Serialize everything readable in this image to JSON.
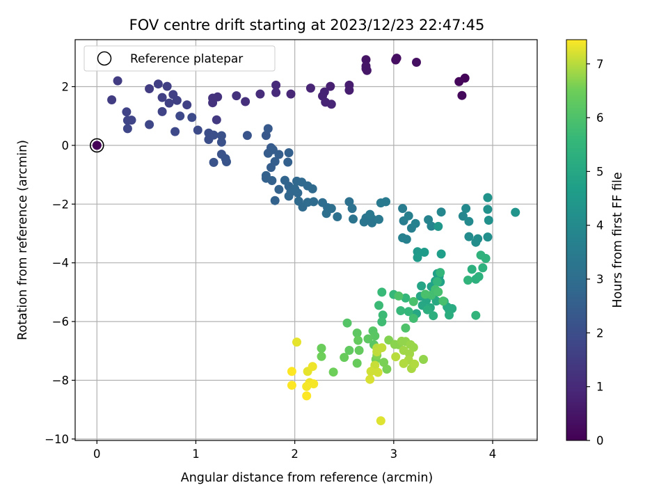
{
  "chart_data": {
    "type": "scatter",
    "title": "FOV centre drift starting at 2023/12/23 22:47:45",
    "xlabel": "Angular distance from reference (arcmin)",
    "ylabel": "Rotation from reference (arcmin)",
    "xlim": [
      -0.22,
      4.45
    ],
    "ylim": [
      -10.05,
      3.6
    ],
    "xticks": [
      0,
      1,
      2,
      3,
      4
    ],
    "xtick_labels": [
      "0",
      "1",
      "2",
      "3",
      "4"
    ],
    "yticks": [
      -10,
      -8,
      -6,
      -4,
      -2,
      0,
      2
    ],
    "ytick_labels": [
      "−10",
      "−8",
      "−6",
      "−4",
      "−2",
      "0",
      "2"
    ],
    "grid": true,
    "legend": {
      "placement": "top-left",
      "entries": [
        {
          "label": "Reference platepar",
          "marker": "open-circle"
        }
      ]
    },
    "reference_point": {
      "x": 0,
      "y": 0,
      "label": "Reference platepar"
    },
    "colorbar": {
      "label": "Hours from first FF file",
      "colormap": "viridis",
      "range": [
        0,
        7.45
      ],
      "ticks": [
        0,
        1,
        2,
        3,
        4,
        5,
        6,
        7
      ],
      "tick_labels": [
        "0",
        "1",
        "2",
        "3",
        "4",
        "5",
        "6",
        "7"
      ]
    },
    "points": [
      [
        0.0,
        0.0,
        0.05
      ],
      [
        3.72,
        2.29,
        0.1
      ],
      [
        3.66,
        2.17,
        0.15
      ],
      [
        3.69,
        1.7,
        0.2
      ],
      [
        3.03,
        2.97,
        0.3
      ],
      [
        3.02,
        2.91,
        0.3
      ],
      [
        3.23,
        2.83,
        0.35
      ],
      [
        2.72,
        2.92,
        0.45
      ],
      [
        2.72,
        2.7,
        0.5
      ],
      [
        2.73,
        2.55,
        0.55
      ],
      [
        2.72,
        2.61,
        0.5
      ],
      [
        2.55,
        2.05,
        0.7
      ],
      [
        2.55,
        1.88,
        0.7
      ],
      [
        2.36,
        2.01,
        0.75
      ],
      [
        2.3,
        1.82,
        0.8
      ],
      [
        2.28,
        1.68,
        0.8
      ],
      [
        2.31,
        1.47,
        0.85
      ],
      [
        2.37,
        1.4,
        0.85
      ],
      [
        2.16,
        1.95,
        0.85
      ],
      [
        1.96,
        1.75,
        0.9
      ],
      [
        1.81,
        2.05,
        1.0
      ],
      [
        1.81,
        1.8,
        1.0
      ],
      [
        1.65,
        1.75,
        1.05
      ],
      [
        1.5,
        1.49,
        1.15
      ],
      [
        1.41,
        1.69,
        1.2
      ],
      [
        1.22,
        1.65,
        1.2
      ],
      [
        1.17,
        1.61,
        1.25
      ],
      [
        1.17,
        1.45,
        1.25
      ],
      [
        1.21,
        0.87,
        1.4
      ],
      [
        0.21,
        2.2,
        1.5
      ],
      [
        0.15,
        1.55,
        1.5
      ],
      [
        0.53,
        1.93,
        1.5
      ],
      [
        0.62,
        2.09,
        1.55
      ],
      [
        0.71,
        2.01,
        1.6
      ],
      [
        0.66,
        1.63,
        1.6
      ],
      [
        0.77,
        1.73,
        1.6
      ],
      [
        0.81,
        1.53,
        1.65
      ],
      [
        0.91,
        1.38,
        1.65
      ],
      [
        0.73,
        1.44,
        1.65
      ],
      [
        0.66,
        1.15,
        1.7
      ],
      [
        0.3,
        1.14,
        1.7
      ],
      [
        0.35,
        0.86,
        1.75
      ],
      [
        0.31,
        0.85,
        1.75
      ],
      [
        0.31,
        0.57,
        1.8
      ],
      [
        0.53,
        0.71,
        1.8
      ],
      [
        0.79,
        0.47,
        1.85
      ],
      [
        0.84,
        1.0,
        1.85
      ],
      [
        0.96,
        0.95,
        1.9
      ],
      [
        1.02,
        0.52,
        1.95
      ],
      [
        1.13,
        0.42,
        2.0
      ],
      [
        1.13,
        0.2,
        2.0
      ],
      [
        1.18,
        0.35,
        2.05
      ],
      [
        1.26,
        0.33,
        2.1
      ],
      [
        1.26,
        0.11,
        2.1
      ],
      [
        1.26,
        -0.3,
        2.15
      ],
      [
        1.3,
        -0.45,
        2.2
      ],
      [
        1.31,
        -0.56,
        2.2
      ],
      [
        1.18,
        -0.58,
        2.15
      ],
      [
        1.52,
        0.34,
        2.2
      ],
      [
        1.71,
        0.34,
        2.3
      ],
      [
        1.73,
        0.57,
        2.35
      ],
      [
        1.76,
        -0.08,
        2.4
      ],
      [
        1.73,
        -0.27,
        2.45
      ],
      [
        1.78,
        -0.15,
        2.45
      ],
      [
        1.76,
        -0.75,
        2.5
      ],
      [
        1.8,
        -0.55,
        2.5
      ],
      [
        1.84,
        -0.31,
        2.5
      ],
      [
        1.94,
        -0.25,
        2.55
      ],
      [
        1.93,
        -0.57,
        2.55
      ],
      [
        1.71,
        -1.03,
        2.6
      ],
      [
        1.71,
        -1.12,
        2.6
      ],
      [
        1.77,
        -1.2,
        2.6
      ],
      [
        1.84,
        -1.5,
        2.65
      ],
      [
        1.8,
        -1.88,
        2.65
      ],
      [
        1.9,
        -1.19,
        2.7
      ],
      [
        1.94,
        -1.39,
        2.7
      ],
      [
        1.94,
        -1.73,
        2.75
      ],
      [
        1.96,
        -1.58,
        2.75
      ],
      [
        2.02,
        -1.22,
        2.8
      ],
      [
        2.0,
        -1.48,
        2.8
      ],
      [
        2.03,
        -1.62,
        2.8
      ],
      [
        2.07,
        -1.25,
        2.85
      ],
      [
        2.13,
        -1.38,
        2.85
      ],
      [
        2.18,
        -1.48,
        2.9
      ],
      [
        2.04,
        -1.9,
        2.9
      ],
      [
        2.08,
        -2.1,
        2.9
      ],
      [
        2.13,
        -1.94,
        2.95
      ],
      [
        2.19,
        -1.92,
        2.95
      ],
      [
        2.28,
        -1.95,
        3.0
      ],
      [
        2.33,
        -2.12,
        3.0
      ],
      [
        2.32,
        -2.32,
        3.05
      ],
      [
        2.37,
        -2.15,
        3.05
      ],
      [
        2.43,
        -2.43,
        3.1
      ],
      [
        2.55,
        -1.92,
        3.1
      ],
      [
        2.58,
        -2.15,
        3.15
      ],
      [
        2.59,
        -2.51,
        3.2
      ],
      [
        2.7,
        -2.61,
        3.25
      ],
      [
        2.72,
        -2.47,
        3.25
      ],
      [
        2.78,
        -2.5,
        3.3
      ],
      [
        2.78,
        -2.64,
        3.3
      ],
      [
        2.76,
        -2.35,
        3.35
      ],
      [
        2.85,
        -2.52,
        3.4
      ],
      [
        2.87,
        -1.96,
        3.45
      ],
      [
        2.92,
        -1.92,
        3.45
      ],
      [
        3.09,
        -2.15,
        3.5
      ],
      [
        3.1,
        -2.57,
        3.55
      ],
      [
        3.15,
        -2.4,
        3.6
      ],
      [
        3.18,
        -2.82,
        3.6
      ],
      [
        3.09,
        -3.15,
        3.65
      ],
      [
        3.13,
        -3.2,
        3.65
      ],
      [
        3.22,
        -2.66,
        3.7
      ],
      [
        3.35,
        -2.53,
        3.75
      ],
      [
        3.38,
        -2.75,
        3.8
      ],
      [
        3.48,
        -2.27,
        3.85
      ],
      [
        3.7,
        -2.41,
        3.9
      ],
      [
        3.73,
        -2.15,
        3.95
      ],
      [
        3.76,
        -2.59,
        4.0
      ],
      [
        3.76,
        -3.11,
        4.05
      ],
      [
        3.83,
        -3.3,
        4.1
      ],
      [
        3.85,
        -3.18,
        4.1
      ],
      [
        3.95,
        -3.12,
        4.15
      ],
      [
        3.95,
        -2.18,
        4.2
      ],
      [
        3.96,
        -2.55,
        4.2
      ],
      [
        3.95,
        -1.78,
        4.3
      ],
      [
        4.23,
        -2.28,
        4.35
      ],
      [
        3.45,
        -2.76,
        4.4
      ],
      [
        3.24,
        -3.62,
        4.5
      ],
      [
        3.24,
        -3.82,
        4.55
      ],
      [
        3.31,
        -3.64,
        4.6
      ],
      [
        3.48,
        -3.7,
        4.65
      ],
      [
        3.44,
        -4.37,
        4.7
      ],
      [
        3.46,
        -4.45,
        4.75
      ],
      [
        3.38,
        -4.81,
        4.75
      ],
      [
        3.42,
        -4.62,
        4.8
      ],
      [
        3.47,
        -4.65,
        4.8
      ],
      [
        3.4,
        -5.12,
        4.85
      ],
      [
        3.28,
        -4.79,
        4.9
      ],
      [
        3.27,
        -5.14,
        4.95
      ],
      [
        3.33,
        -5.27,
        4.95
      ],
      [
        3.29,
        -5.45,
        5.0
      ],
      [
        3.23,
        -5.73,
        5.0
      ],
      [
        3.37,
        -5.53,
        5.05
      ],
      [
        3.43,
        -5.3,
        5.05
      ],
      [
        3.51,
        -5.32,
        5.1
      ],
      [
        3.54,
        -5.5,
        5.1
      ],
      [
        3.56,
        -5.61,
        5.15
      ],
      [
        3.59,
        -5.56,
        5.15
      ],
      [
        3.56,
        -5.78,
        5.2
      ],
      [
        3.4,
        -5.8,
        5.25
      ],
      [
        3.34,
        -5.6,
        5.25
      ],
      [
        3.83,
        -4.56,
        5.3
      ],
      [
        3.79,
        -4.22,
        5.3
      ],
      [
        3.9,
        -4.17,
        5.35
      ],
      [
        3.86,
        -4.47,
        5.35
      ],
      [
        3.88,
        -3.74,
        5.4
      ],
      [
        3.93,
        -3.85,
        5.4
      ],
      [
        3.83,
        -5.79,
        5.45
      ],
      [
        3.75,
        -4.59,
        5.45
      ],
      [
        3.47,
        -4.33,
        5.5
      ],
      [
        3.44,
        -4.64,
        5.5
      ],
      [
        3.12,
        -5.2,
        5.55
      ],
      [
        3.15,
        -5.66,
        5.55
      ],
      [
        3.07,
        -5.63,
        5.6
      ],
      [
        3.0,
        -5.08,
        5.6
      ],
      [
        2.88,
        -5.0,
        5.65
      ],
      [
        2.89,
        -5.78,
        5.7
      ],
      [
        2.85,
        -5.45,
        5.7
      ],
      [
        2.88,
        -6.01,
        5.75
      ],
      [
        3.2,
        -5.89,
        5.8
      ],
      [
        3.38,
        -5.1,
        5.85
      ],
      [
        3.42,
        -4.91,
        5.85
      ],
      [
        3.45,
        -4.99,
        5.9
      ],
      [
        3.5,
        -5.3,
        5.9
      ],
      [
        3.32,
        -5.07,
        5.95
      ],
      [
        3.2,
        -5.32,
        5.95
      ],
      [
        3.05,
        -5.13,
        6.0
      ],
      [
        3.12,
        -6.22,
        6.0
      ],
      [
        2.53,
        -6.05,
        6.1
      ],
      [
        2.79,
        -6.32,
        6.15
      ],
      [
        2.81,
        -6.49,
        6.2
      ],
      [
        2.8,
        -6.79,
        6.2
      ],
      [
        2.74,
        -6.59,
        6.25
      ],
      [
        2.63,
        -6.39,
        6.25
      ],
      [
        2.55,
        -6.98,
        6.3
      ],
      [
        2.64,
        -6.64,
        6.35
      ],
      [
        2.65,
        -6.98,
        6.35
      ],
      [
        2.5,
        -7.22,
        6.4
      ],
      [
        2.63,
        -7.42,
        6.4
      ],
      [
        2.27,
        -6.91,
        6.45
      ],
      [
        2.27,
        -7.19,
        6.5
      ],
      [
        2.39,
        -7.72,
        6.5
      ],
      [
        2.82,
        -7.29,
        6.55
      ],
      [
        2.93,
        -7.62,
        6.6
      ],
      [
        2.9,
        -7.39,
        6.6
      ],
      [
        2.83,
        -7.15,
        6.65
      ],
      [
        2.95,
        -6.63,
        6.65
      ],
      [
        3.01,
        -6.78,
        6.7
      ],
      [
        3.05,
        -6.79,
        6.7
      ],
      [
        3.08,
        -6.67,
        6.75
      ],
      [
        3.12,
        -6.68,
        6.75
      ],
      [
        3.17,
        -6.79,
        6.8
      ],
      [
        3.2,
        -6.88,
        6.8
      ],
      [
        3.1,
        -6.98,
        6.85
      ],
      [
        3.16,
        -7.1,
        6.85
      ],
      [
        3.15,
        -7.31,
        6.9
      ],
      [
        3.18,
        -7.6,
        6.9
      ],
      [
        3.21,
        -7.45,
        6.95
      ],
      [
        3.1,
        -7.43,
        6.95
      ],
      [
        3.02,
        -7.2,
        7.0
      ],
      [
        3.3,
        -7.29,
        6.75
      ],
      [
        2.83,
        -6.9,
        7.0
      ],
      [
        2.88,
        -6.89,
        7.05
      ],
      [
        2.83,
        -7.03,
        7.05
      ],
      [
        2.8,
        -7.64,
        7.1
      ],
      [
        2.81,
        -7.49,
        7.1
      ],
      [
        2.84,
        -7.73,
        7.15
      ],
      [
        2.77,
        -7.7,
        7.15
      ],
      [
        2.76,
        -7.97,
        7.2
      ],
      [
        2.87,
        -9.38,
        7.25
      ],
      [
        2.02,
        -6.7,
        7.3
      ],
      [
        2.13,
        -7.7,
        7.3
      ],
      [
        2.18,
        -7.53,
        7.35
      ],
      [
        2.15,
        -8.08,
        7.35
      ],
      [
        2.19,
        -8.12,
        7.4
      ],
      [
        2.12,
        -8.21,
        7.4
      ],
      [
        2.12,
        -8.53,
        7.45
      ],
      [
        1.97,
        -8.17,
        7.45
      ],
      [
        1.97,
        -7.7,
        7.45
      ]
    ]
  }
}
